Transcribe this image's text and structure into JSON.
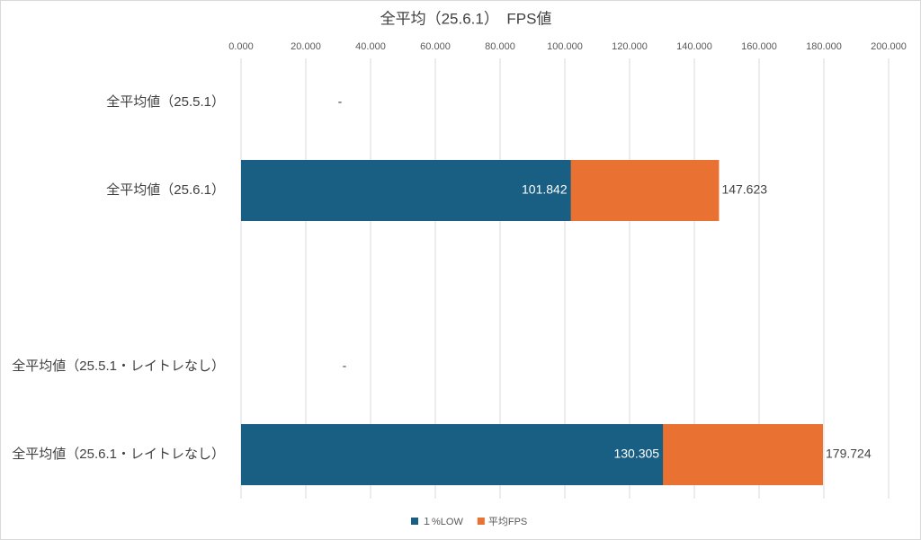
{
  "chart_data": {
    "type": "bar",
    "orientation": "horizontal",
    "overlap": true,
    "title": "全平均（25.6.1）　FPS値",
    "categories": [
      "全平均値（25.5.1）",
      "全平均値（25.6.1）",
      null,
      "全平均値（25.5.1・レイトレなし）",
      "全平均値（25.6.1・レイトレなし）"
    ],
    "series": [
      {
        "name": "１%LOW",
        "color": "#195e83",
        "values": [
          null,
          101.842,
          null,
          null,
          130.305
        ]
      },
      {
        "name": "平均FPS",
        "color": "#e97132",
        "values": [
          null,
          147.623,
          null,
          null,
          179.724
        ],
        "value_labels": [
          "-",
          "147.623",
          null,
          "-",
          "179.724"
        ]
      }
    ],
    "xlim": [
      0,
      200
    ],
    "xticks": [
      {
        "value": 0,
        "label": "0.000"
      },
      {
        "value": 20,
        "label": "20.000"
      },
      {
        "value": 40,
        "label": "40.000"
      },
      {
        "value": 60,
        "label": "60.000"
      },
      {
        "value": 80,
        "label": "80.000"
      },
      {
        "value": 100,
        "label": "100.000"
      },
      {
        "value": 120,
        "label": "120.000"
      },
      {
        "value": 140,
        "label": "140.000"
      },
      {
        "value": 160,
        "label": "160.000"
      },
      {
        "value": 180,
        "label": "180.000"
      },
      {
        "value": 200,
        "label": "200.000"
      }
    ],
    "grid": true,
    "legend": "bottom"
  }
}
